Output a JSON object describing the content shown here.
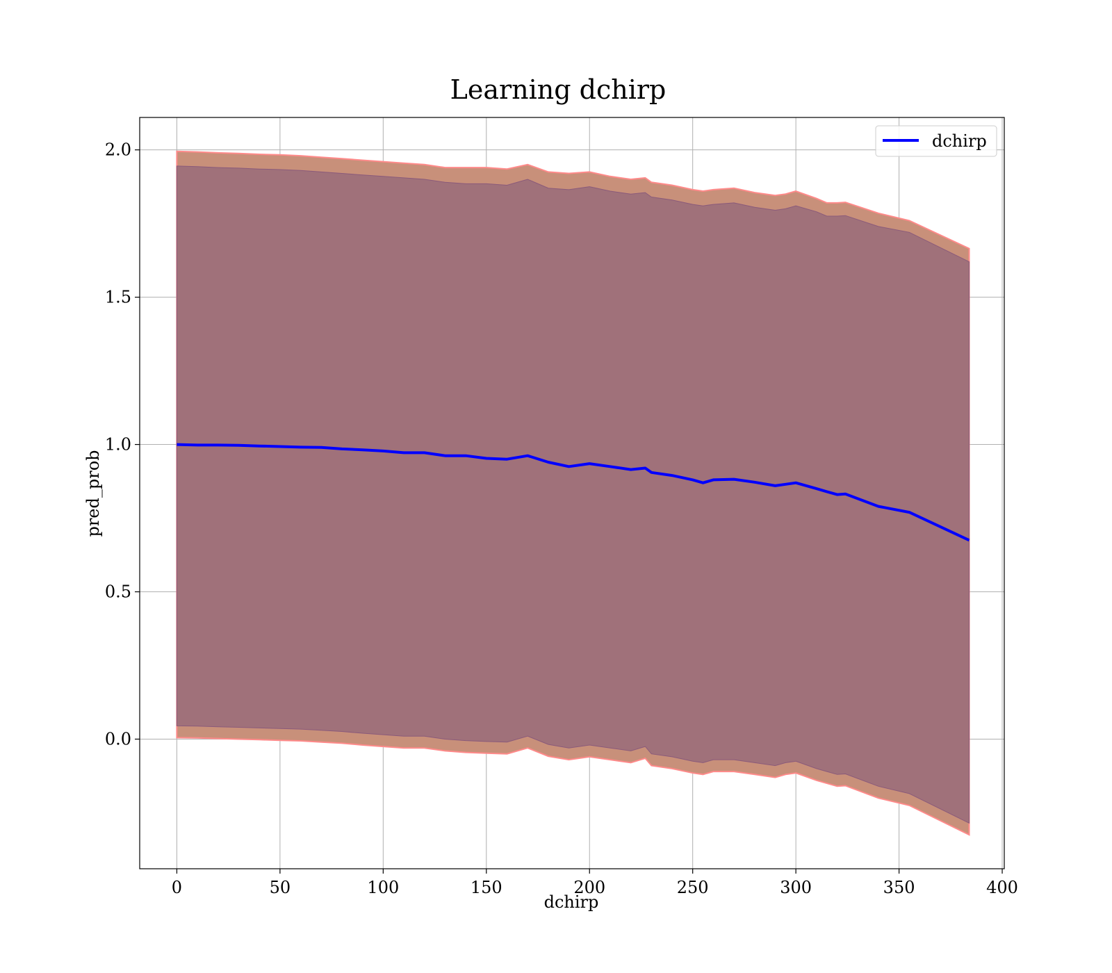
{
  "chart_data": {
    "type": "line",
    "title": "Learning dchirp",
    "xlabel": "dchirp",
    "ylabel": "pred_prob",
    "xlim": [
      -18,
      401
    ],
    "ylim": [
      -0.44,
      2.11
    ],
    "x_ticks": [
      0,
      50,
      100,
      150,
      200,
      250,
      300,
      350,
      400
    ],
    "y_ticks": [
      0.0,
      0.5,
      1.0,
      1.5,
      2.0
    ],
    "x_tick_labels": [
      "0",
      "50",
      "100",
      "150",
      "200",
      "250",
      "300",
      "350",
      "400"
    ],
    "y_tick_labels": [
      "0.0",
      "0.5",
      "1.0",
      "1.5",
      "2.0"
    ],
    "grid": true,
    "legend": {
      "position": "top-right",
      "entries": [
        "dchirp"
      ]
    },
    "colors": {
      "line": "#0000ff",
      "outer_band": "#c8907a",
      "outer_band_edge": "#ff8a8a",
      "inner_band": "#a0717a",
      "inner_band_edge": "#8a5a7a",
      "grid": "#b0b0b0"
    },
    "series": [
      {
        "name": "dchirp",
        "x": [
          0,
          10,
          20,
          30,
          40,
          50,
          60,
          70,
          80,
          90,
          100,
          110,
          120,
          130,
          140,
          150,
          160,
          170,
          180,
          190,
          200,
          210,
          220,
          227,
          230,
          240,
          250,
          255,
          260,
          270,
          280,
          290,
          295,
          300,
          310,
          315,
          320,
          324,
          340,
          355,
          384
        ],
        "y": [
          1.0,
          0.998,
          0.998,
          0.997,
          0.995,
          0.993,
          0.991,
          0.99,
          0.985,
          0.982,
          0.978,
          0.972,
          0.972,
          0.962,
          0.962,
          0.953,
          0.95,
          0.962,
          0.94,
          0.925,
          0.935,
          0.925,
          0.915,
          0.92,
          0.905,
          0.895,
          0.88,
          0.87,
          0.88,
          0.882,
          0.872,
          0.86,
          0.865,
          0.87,
          0.85,
          0.84,
          0.83,
          0.832,
          0.79,
          0.77,
          0.675
        ],
        "outer_upper": [
          1.995,
          1.993,
          1.99,
          1.988,
          1.985,
          1.983,
          1.98,
          1.975,
          1.97,
          1.965,
          1.96,
          1.955,
          1.95,
          1.94,
          1.94,
          1.94,
          1.935,
          1.95,
          1.925,
          1.92,
          1.925,
          1.91,
          1.9,
          1.905,
          1.89,
          1.88,
          1.865,
          1.86,
          1.865,
          1.87,
          1.855,
          1.845,
          1.85,
          1.86,
          1.835,
          1.82,
          1.82,
          1.822,
          1.785,
          1.76,
          1.665
        ],
        "outer_lower": [
          0.005,
          0.004,
          0.002,
          0.0,
          -0.002,
          -0.004,
          -0.006,
          -0.01,
          -0.014,
          -0.02,
          -0.025,
          -0.03,
          -0.03,
          -0.04,
          -0.045,
          -0.048,
          -0.05,
          -0.03,
          -0.058,
          -0.07,
          -0.06,
          -0.07,
          -0.08,
          -0.065,
          -0.09,
          -0.1,
          -0.115,
          -0.12,
          -0.11,
          -0.11,
          -0.12,
          -0.13,
          -0.12,
          -0.115,
          -0.14,
          -0.15,
          -0.16,
          -0.158,
          -0.2,
          -0.225,
          -0.325
        ],
        "inner_upper": [
          1.945,
          1.943,
          1.94,
          1.938,
          1.935,
          1.933,
          1.93,
          1.925,
          1.92,
          1.915,
          1.91,
          1.905,
          1.9,
          1.89,
          1.885,
          1.885,
          1.88,
          1.9,
          1.87,
          1.865,
          1.875,
          1.86,
          1.85,
          1.855,
          1.84,
          1.83,
          1.815,
          1.81,
          1.815,
          1.82,
          1.805,
          1.795,
          1.8,
          1.81,
          1.79,
          1.775,
          1.775,
          1.777,
          1.74,
          1.72,
          1.62
        ],
        "inner_lower": [
          0.045,
          0.044,
          0.042,
          0.04,
          0.038,
          0.036,
          0.034,
          0.03,
          0.026,
          0.02,
          0.015,
          0.01,
          0.01,
          0.0,
          -0.005,
          -0.008,
          -0.01,
          0.01,
          -0.018,
          -0.03,
          -0.02,
          -0.03,
          -0.04,
          -0.025,
          -0.05,
          -0.06,
          -0.075,
          -0.08,
          -0.07,
          -0.07,
          -0.08,
          -0.09,
          -0.08,
          -0.075,
          -0.1,
          -0.11,
          -0.12,
          -0.118,
          -0.16,
          -0.185,
          -0.285
        ]
      }
    ]
  }
}
